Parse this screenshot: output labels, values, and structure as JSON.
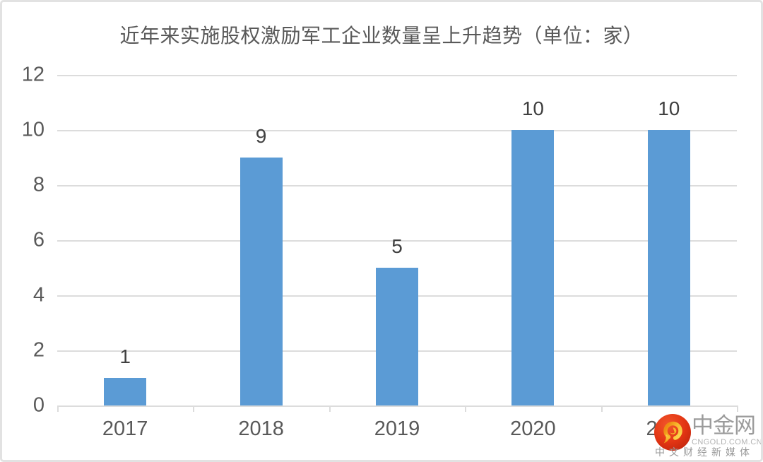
{
  "chart_data": {
    "type": "bar",
    "title": "近年来实施股权激励军工企业数量呈上升趋势（单位：家）",
    "categories": [
      "2017",
      "2018",
      "2019",
      "2020",
      "2021"
    ],
    "values": [
      1,
      9,
      5,
      10,
      10
    ],
    "data_labels": [
      "1",
      "9",
      "5",
      "10",
      "10"
    ],
    "y_ticks": [
      0,
      2,
      4,
      6,
      8,
      10,
      12
    ],
    "ylim": [
      0,
      12
    ],
    "xlabel": "",
    "ylabel": "",
    "grid": true,
    "legend_position": "none",
    "bar_color": "#5B9BD5"
  },
  "watermark": {
    "brand": "中金网",
    "domain": "CNGOLD.COM.CN",
    "tagline": "中文财经新媒体",
    "logo": "cngold-phoenix-logo"
  },
  "colors": {
    "bar": "#5B9BD5",
    "gridline": "#DCDCDC",
    "axis": "#D6D6D6",
    "text": "#595959",
    "data_label": "#404040",
    "card_border": "#E2E2E2",
    "watermark_text": "#9B9B9B",
    "logo_red": "#E23413",
    "logo_gold": "#F7B52C"
  }
}
